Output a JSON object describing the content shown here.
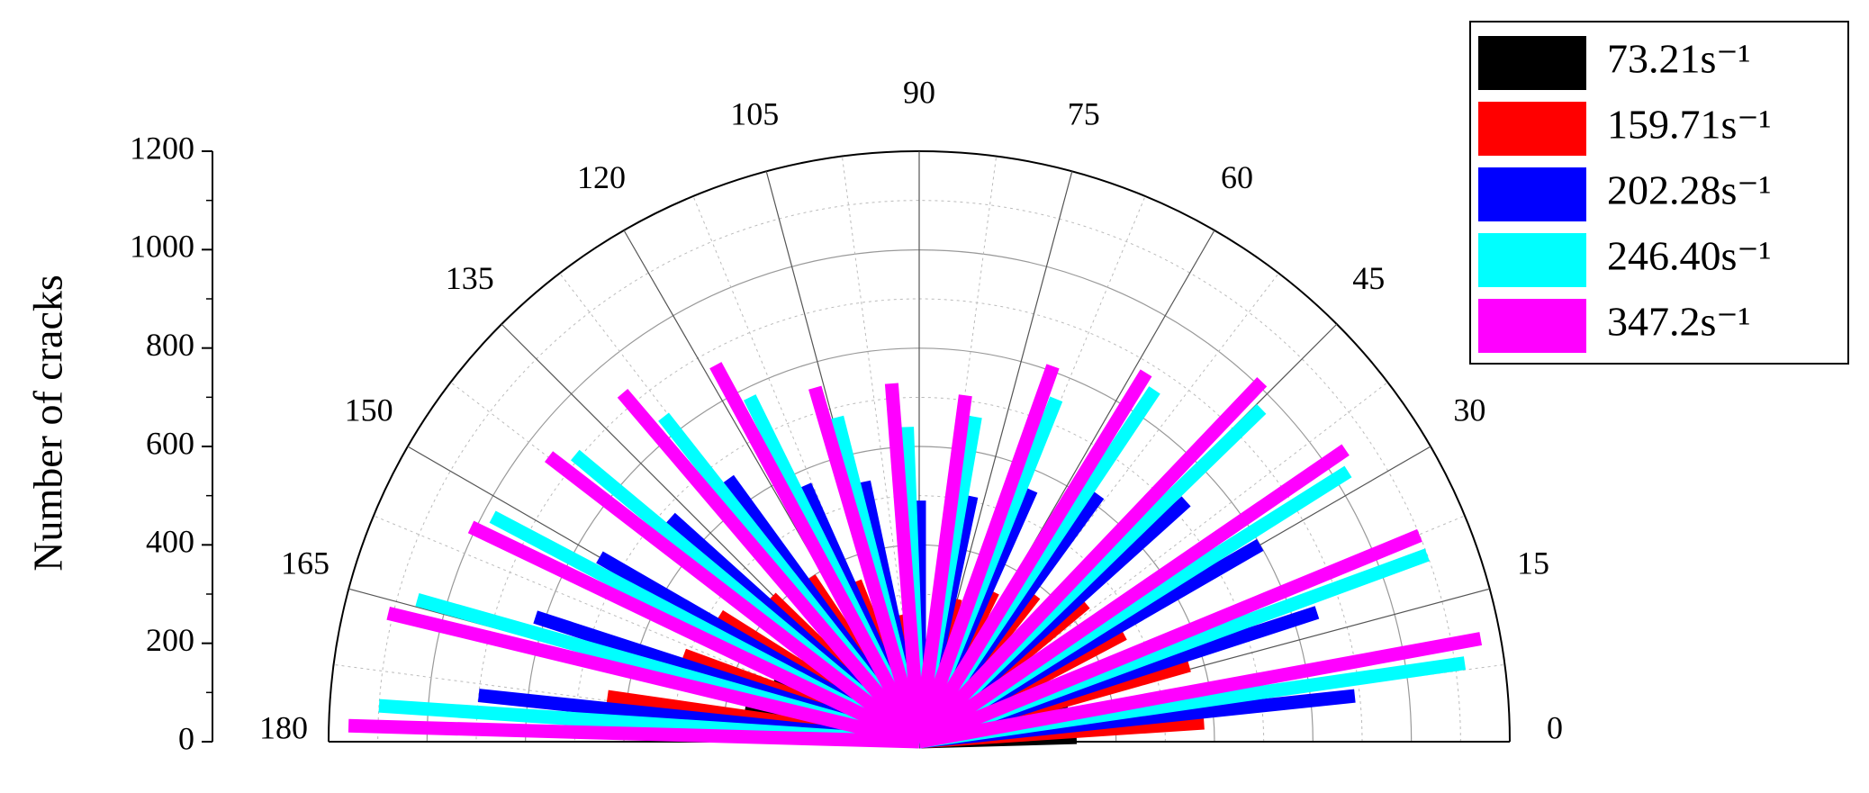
{
  "chart_data": {
    "type": "polar_bar",
    "ylabel": "Number of cracks",
    "x": [
      6,
      18,
      30,
      42,
      54,
      66,
      78,
      90,
      102,
      114,
      126,
      138,
      150,
      162,
      174
    ],
    "xlim": [
      0,
      180
    ],
    "xticks": [
      0,
      15,
      30,
      45,
      60,
      75,
      90,
      105,
      120,
      135,
      150,
      165,
      180
    ],
    "ylim": [
      0,
      1200
    ],
    "yticks": [
      0,
      200,
      400,
      600,
      800,
      1000,
      1200
    ],
    "grid": true,
    "legend": "upper right",
    "series": [
      {
        "name": "73.21s⁻¹",
        "color": "#000000",
        "values": [
          320,
          310,
          250,
          220,
          190,
          150,
          120,
          100,
          120,
          150,
          190,
          240,
          290,
          320,
          360
        ]
      },
      {
        "name": "159.71s⁻¹",
        "color": "#ff0000",
        "values": [
          580,
          570,
          470,
          440,
          380,
          340,
          300,
          190,
          260,
          350,
          400,
          420,
          480,
          510,
          640
        ]
      },
      {
        "name": "202.28s⁻¹",
        "color": "#0000ff",
        "values": [
          890,
          850,
          800,
          730,
          620,
          560,
          510,
          490,
          540,
          570,
          660,
          680,
          750,
          820,
          900
        ]
      },
      {
        "name": "246.40s⁻¹",
        "color": "#00ffff",
        "values": [
          1120,
          1100,
          1030,
          970,
          860,
          750,
          670,
          640,
          680,
          780,
          840,
          910,
          980,
          1060,
          1100
        ]
      },
      {
        "name": "347.2s⁻¹",
        "color": "#ff00ff",
        "values": [
          1160,
          1100,
          1050,
          1010,
          880,
          810,
          710,
          730,
          750,
          870,
          930,
          950,
          1010,
          1110,
          1160
        ]
      }
    ]
  }
}
